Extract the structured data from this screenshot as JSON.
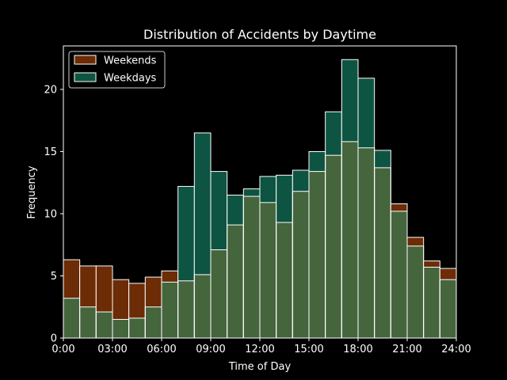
{
  "chart_data": {
    "type": "bar",
    "title": "Distribution of Accidents by Daytime",
    "xlabel": "Time of Day",
    "ylabel": "Frequency",
    "xlim": [
      0,
      24
    ],
    "ylim": [
      0,
      23.5
    ],
    "xticks": [
      0,
      3,
      6,
      9,
      12,
      15,
      18,
      21,
      24
    ],
    "xtick_labels": [
      "0:00",
      "03:00",
      "06:00",
      "09:00",
      "12:00",
      "15:00",
      "18:00",
      "21:00",
      "24:00"
    ],
    "yticks": [
      0,
      5,
      10,
      15,
      20
    ],
    "ytick_labels": [
      "0",
      "5",
      "10",
      "15",
      "20"
    ],
    "bin_width_hours": 1,
    "bin_starts": [
      0,
      1,
      2,
      3,
      4,
      5,
      6,
      7,
      8,
      9,
      10,
      11,
      12,
      13,
      14,
      15,
      16,
      17,
      18,
      19,
      20,
      21,
      22,
      23
    ],
    "series": [
      {
        "name": "Weekends",
        "color": "#6b2c06",
        "values": [
          6.3,
          5.8,
          5.8,
          4.7,
          4.4,
          4.9,
          5.4,
          4.6,
          5.1,
          7.1,
          9.1,
          11.4,
          10.9,
          9.3,
          11.8,
          13.4,
          14.7,
          15.8,
          15.3,
          13.7,
          10.8,
          8.1,
          6.2,
          5.6
        ]
      },
      {
        "name": "Weekdays",
        "color": "#0e5442",
        "values": [
          3.2,
          2.5,
          2.1,
          1.5,
          1.6,
          2.5,
          4.5,
          12.2,
          16.5,
          13.4,
          11.5,
          12.0,
          13.0,
          13.1,
          13.5,
          15.0,
          18.2,
          22.4,
          20.9,
          15.1,
          10.2,
          7.4,
          5.7,
          4.7
        ]
      }
    ],
    "overlap_color": "#45653d",
    "legend": {
      "placement": "top-left"
    },
    "grid": false
  }
}
